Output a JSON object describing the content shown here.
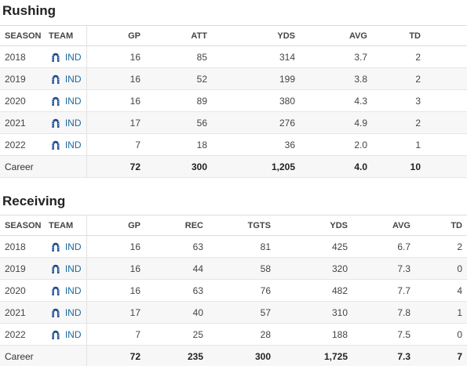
{
  "rushing": {
    "title": "Rushing",
    "headers": [
      "SEASON",
      "TEAM",
      "GP",
      "ATT",
      "YDS",
      "AVG",
      "TD"
    ],
    "rows": [
      {
        "season": "2018",
        "team": "IND",
        "gp": "16",
        "att": "85",
        "yds": "314",
        "avg": "3.7",
        "td": "2"
      },
      {
        "season": "2019",
        "team": "IND",
        "gp": "16",
        "att": "52",
        "yds": "199",
        "avg": "3.8",
        "td": "2"
      },
      {
        "season": "2020",
        "team": "IND",
        "gp": "16",
        "att": "89",
        "yds": "380",
        "avg": "4.3",
        "td": "3"
      },
      {
        "season": "2021",
        "team": "IND",
        "gp": "17",
        "att": "56",
        "yds": "276",
        "avg": "4.9",
        "td": "2"
      },
      {
        "season": "2022",
        "team": "IND",
        "gp": "7",
        "att": "18",
        "yds": "36",
        "avg": "2.0",
        "td": "1"
      }
    ],
    "career": {
      "label": "Career",
      "gp": "72",
      "att": "300",
      "yds": "1,205",
      "avg": "4.0",
      "td": "10"
    }
  },
  "receiving": {
    "title": "Receiving",
    "headers": [
      "SEASON",
      "TEAM",
      "GP",
      "REC",
      "TGTS",
      "YDS",
      "AVG",
      "TD"
    ],
    "rows": [
      {
        "season": "2018",
        "team": "IND",
        "gp": "16",
        "rec": "63",
        "tgts": "81",
        "yds": "425",
        "avg": "6.7",
        "td": "2"
      },
      {
        "season": "2019",
        "team": "IND",
        "gp": "16",
        "rec": "44",
        "tgts": "58",
        "yds": "320",
        "avg": "7.3",
        "td": "0"
      },
      {
        "season": "2020",
        "team": "IND",
        "gp": "16",
        "rec": "63",
        "tgts": "76",
        "yds": "482",
        "avg": "7.7",
        "td": "4"
      },
      {
        "season": "2021",
        "team": "IND",
        "gp": "17",
        "rec": "40",
        "tgts": "57",
        "yds": "310",
        "avg": "7.8",
        "td": "1"
      },
      {
        "season": "2022",
        "team": "IND",
        "gp": "7",
        "rec": "25",
        "tgts": "28",
        "yds": "188",
        "avg": "7.5",
        "td": "0"
      }
    ],
    "career": {
      "label": "Career",
      "gp": "72",
      "rec": "235",
      "tgts": "300",
      "yds": "1,725",
      "avg": "7.3",
      "td": "7"
    }
  },
  "team_logo": {
    "icon": "colts-horseshoe-icon",
    "color": "#1a4b8c"
  }
}
